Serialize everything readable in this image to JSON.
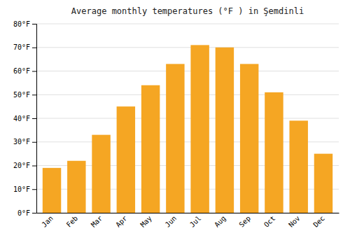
{
  "chart_data": {
    "type": "bar",
    "title": "Average monthly temperatures (°F ) in Şemdinli",
    "categories": [
      "Jan",
      "Feb",
      "Mar",
      "Apr",
      "May",
      "Jun",
      "Jul",
      "Aug",
      "Sep",
      "Oct",
      "Nov",
      "Dec"
    ],
    "values": [
      19,
      22,
      33,
      45,
      54,
      63,
      71,
      70,
      63,
      51,
      39,
      25
    ],
    "color": "#F5A623",
    "ylim": [
      0,
      80
    ],
    "yticks": [
      {
        "value": 0,
        "label": "0°F"
      },
      {
        "value": 10,
        "label": "10°F"
      },
      {
        "value": 20,
        "label": "20°F"
      },
      {
        "value": 30,
        "label": "30°F"
      },
      {
        "value": 40,
        "label": "40°F"
      },
      {
        "value": 50,
        "label": "50°F"
      },
      {
        "value": 60,
        "label": "60°F"
      },
      {
        "value": 70,
        "label": "70°F"
      },
      {
        "value": 80,
        "label": "80°F"
      }
    ],
    "grid": true
  }
}
